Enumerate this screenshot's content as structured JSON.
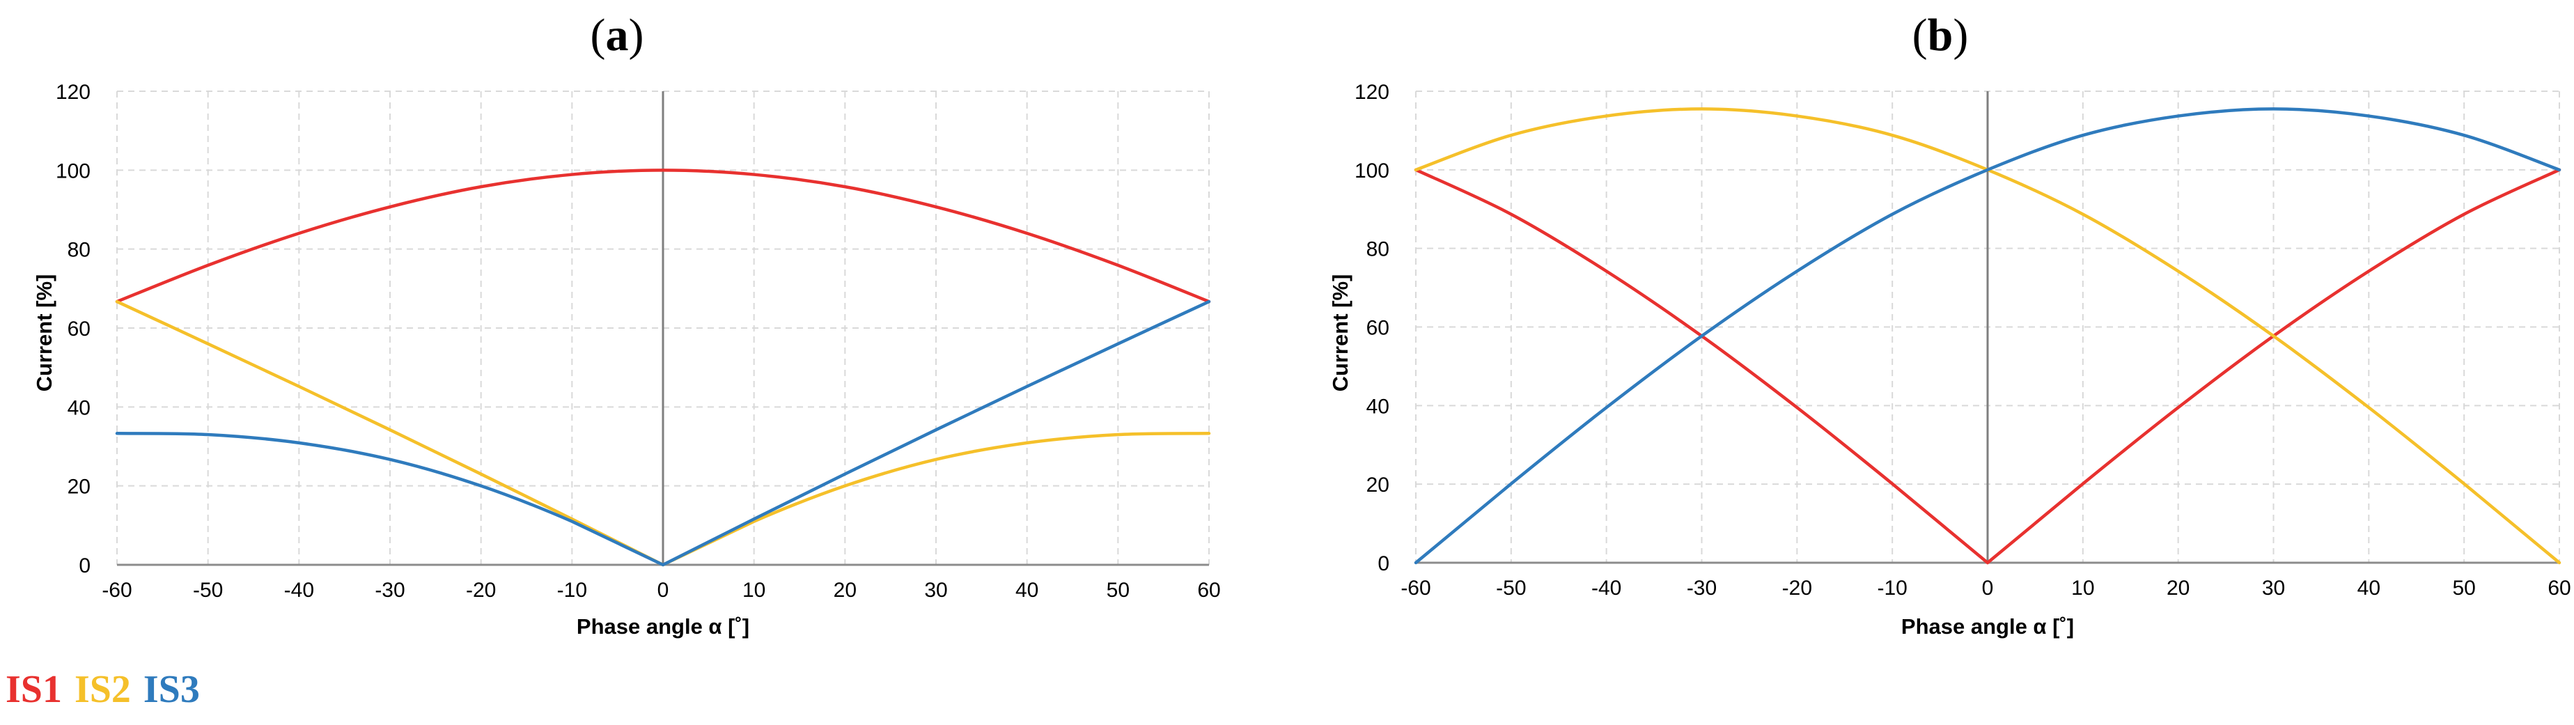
{
  "chart_data": [
    {
      "type": "line",
      "panel_label": "a",
      "xlabel": "Phase angle α [˚]",
      "ylabel": "Current [%]",
      "xlim": [
        -60,
        60
      ],
      "ylim": [
        0,
        120
      ],
      "xticks": [
        -60,
        -50,
        -40,
        -30,
        -20,
        -10,
        0,
        10,
        20,
        30,
        40,
        50,
        60
      ],
      "yticks": [
        0,
        20,
        40,
        60,
        80,
        100,
        120
      ],
      "grid": true,
      "x": [
        -60,
        -50,
        -40,
        -30,
        -20,
        -10,
        0,
        10,
        20,
        30,
        40,
        50,
        60
      ],
      "series": [
        {
          "name": "IS1",
          "color": "#e8312f",
          "values": [
            66.7,
            75.9,
            84.0,
            90.7,
            95.8,
            98.9,
            100.0,
            98.9,
            95.8,
            90.7,
            84.0,
            75.9,
            66.7
          ]
        },
        {
          "name": "IS2",
          "color": "#f5c02a",
          "values": [
            66.7,
            56.0,
            45.2,
            34.2,
            23.0,
            11.6,
            0.0,
            11.0,
            20.0,
            26.7,
            30.9,
            33.0,
            33.3
          ]
        },
        {
          "name": "IS3",
          "color": "#2f7bbd",
          "values": [
            33.3,
            33.0,
            30.9,
            26.7,
            20.0,
            11.0,
            0.0,
            11.6,
            23.0,
            34.2,
            45.2,
            56.0,
            66.7
          ]
        }
      ]
    },
    {
      "type": "line",
      "panel_label": "b",
      "xlabel": "Phase angle α [˚]",
      "ylabel": "Current [%]",
      "xlim": [
        -60,
        60
      ],
      "ylim": [
        0,
        120
      ],
      "xticks": [
        -60,
        -50,
        -40,
        -30,
        -20,
        -10,
        0,
        10,
        20,
        30,
        40,
        50,
        60
      ],
      "yticks": [
        0,
        20,
        40,
        60,
        80,
        100,
        120
      ],
      "grid": true,
      "x": [
        -60,
        -50,
        -40,
        -30,
        -20,
        -10,
        0,
        10,
        20,
        30,
        40,
        50,
        60
      ],
      "series": [
        {
          "name": "IS1",
          "color": "#e8312f",
          "values": [
            100.0,
            88.7,
            74.2,
            57.7,
            39.5,
            20.1,
            0.0,
            20.1,
            39.5,
            57.7,
            74.2,
            88.7,
            100.0
          ]
        },
        {
          "name": "IS2",
          "color": "#f5c02a",
          "values": [
            100.0,
            108.8,
            113.7,
            115.5,
            113.7,
            108.8,
            100.0,
            88.7,
            74.2,
            57.7,
            39.5,
            20.1,
            0.0
          ]
        },
        {
          "name": "IS3",
          "color": "#2f7bbd",
          "values": [
            0.0,
            20.1,
            39.5,
            57.7,
            74.2,
            88.7,
            100.0,
            108.8,
            113.7,
            115.5,
            113.7,
            108.8,
            100.0
          ]
        }
      ]
    }
  ],
  "legend": {
    "items": [
      {
        "label": "IS1",
        "color": "#e8312f"
      },
      {
        "label": "IS2",
        "color": "#f5c02a"
      },
      {
        "label": "IS3",
        "color": "#2f7bbd"
      }
    ]
  }
}
